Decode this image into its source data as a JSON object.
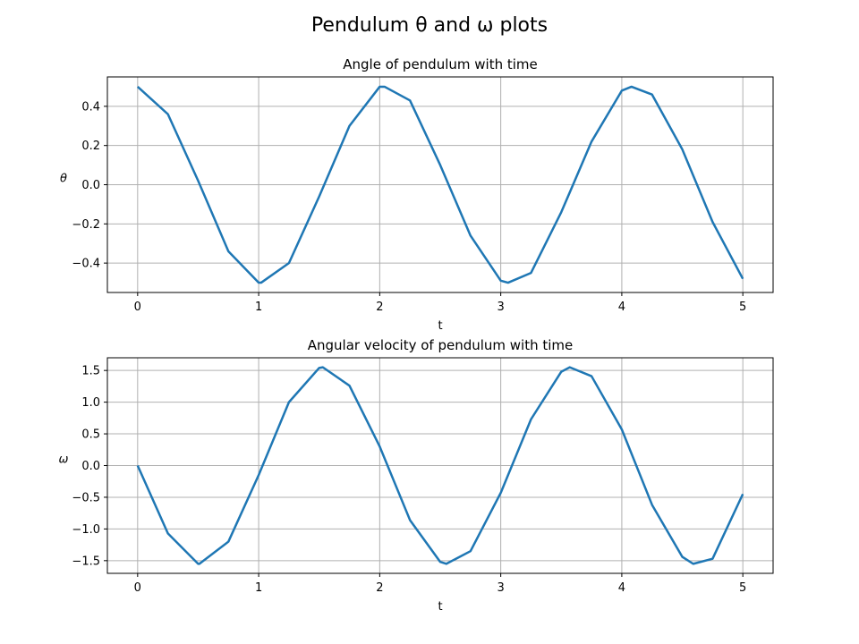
{
  "figure": {
    "suptitle": "Pendulum θ and ω plots"
  },
  "chart_data": [
    {
      "type": "line",
      "title": "Angle of pendulum with time",
      "xlabel": "t",
      "ylabel": "θ",
      "xlim": [
        -0.25,
        5.25
      ],
      "ylim": [
        -0.55,
        0.55
      ],
      "xticks": [
        0,
        1,
        2,
        3,
        4,
        5
      ],
      "yticks": [
        -0.4,
        -0.2,
        0.0,
        0.2,
        0.4
      ],
      "ytick_labels": [
        "−0.4",
        "−0.2",
        "0.0",
        "0.2",
        "0.4"
      ],
      "grid": true,
      "series": [
        {
          "color": "#1f77b4",
          "x": [
            0,
            0.25,
            0.5,
            0.75,
            1.0,
            1.02,
            1.25,
            1.5,
            1.75,
            2.0,
            2.04,
            2.25,
            2.5,
            2.75,
            3.0,
            3.06,
            3.25,
            3.5,
            3.75,
            4.0,
            4.08,
            4.25,
            4.5,
            4.75,
            5.0
          ],
          "values": [
            0.5,
            0.36,
            0.02,
            -0.34,
            -0.5,
            -0.5,
            -0.4,
            -0.06,
            0.3,
            0.5,
            0.5,
            0.43,
            0.1,
            -0.26,
            -0.49,
            -0.5,
            -0.45,
            -0.14,
            0.22,
            0.48,
            0.5,
            0.46,
            0.18,
            -0.19,
            -0.48
          ]
        }
      ]
    },
    {
      "type": "line",
      "title": "Angular velocity of pendulum with time",
      "xlabel": "t",
      "ylabel": "ω",
      "xlim": [
        -0.25,
        5.25
      ],
      "ylim": [
        -1.7,
        1.7
      ],
      "xticks": [
        0,
        1,
        2,
        3,
        4,
        5
      ],
      "yticks": [
        -1.5,
        -1.0,
        -0.5,
        0.0,
        0.5,
        1.0,
        1.5
      ],
      "ytick_labels": [
        "−1.5",
        "−1.0",
        "−0.5",
        "0.0",
        "0.5",
        "1.0",
        "1.5"
      ],
      "grid": true,
      "series": [
        {
          "color": "#1f77b4",
          "x": [
            0,
            0.25,
            0.5,
            0.51,
            0.75,
            1.0,
            1.25,
            1.5,
            1.53,
            1.75,
            2.0,
            2.25,
            2.5,
            2.55,
            2.75,
            3.0,
            3.25,
            3.5,
            3.57,
            3.75,
            4.0,
            4.25,
            4.5,
            4.59,
            4.75,
            5.0
          ],
          "values": [
            0.0,
            -1.07,
            -1.55,
            -1.55,
            -1.2,
            -0.15,
            1.0,
            1.54,
            1.55,
            1.26,
            0.3,
            -0.86,
            -1.52,
            -1.55,
            -1.35,
            -0.43,
            0.73,
            1.48,
            1.55,
            1.41,
            0.57,
            -0.62,
            -1.44,
            -1.55,
            -1.47,
            -0.45
          ]
        }
      ]
    }
  ]
}
